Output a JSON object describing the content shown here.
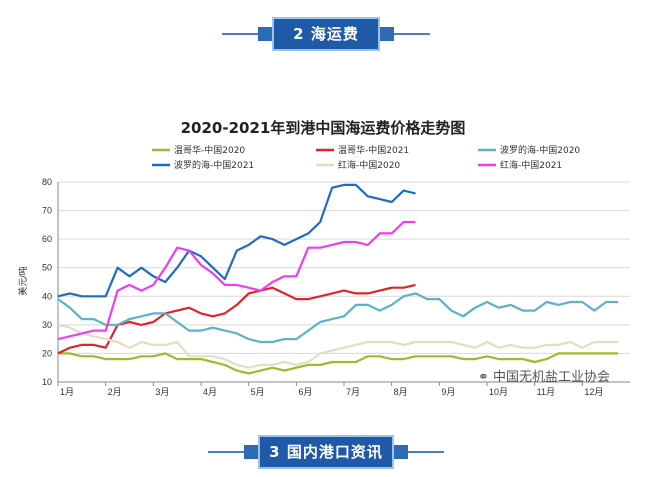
{
  "section2": {
    "label": "2  海运费"
  },
  "section3": {
    "label": "3  国内港口资讯"
  },
  "watermark": {
    "text": "中国无机盐工业协会",
    "icon": "wechat-icon"
  },
  "chart_data": {
    "type": "line",
    "title": "2020-2021年到港中国海运费价格走势图",
    "ylabel": "美元/吨",
    "xlabel": "",
    "ylim": [
      10,
      80
    ],
    "yticks": [
      10,
      20,
      30,
      40,
      50,
      60,
      70,
      80
    ],
    "grid": true,
    "legend_position": "top",
    "categories": [
      "1月",
      "2月",
      "3月",
      "4月",
      "5月",
      "6月",
      "7月",
      "8月",
      "9月",
      "10月",
      "11月",
      "12月"
    ],
    "series": [
      {
        "name": "温哥华-中国2020",
        "color": "#9bbb2c",
        "x": [
          1,
          1.25,
          1.5,
          1.75,
          2,
          2.25,
          2.5,
          2.75,
          3,
          3.25,
          3.5,
          3.75,
          4,
          4.25,
          4.5,
          4.75,
          5,
          5.25,
          5.5,
          5.75,
          6,
          6.25,
          6.5,
          6.75,
          7,
          7.25,
          7.5,
          7.75,
          8,
          8.25,
          8.5,
          8.75,
          9,
          9.25,
          9.5,
          9.75,
          10,
          10.25,
          10.5,
          10.75,
          11,
          11.25,
          11.5,
          11.75,
          12,
          12.25,
          12.5,
          12.75
        ],
        "values": [
          20,
          20,
          19,
          19,
          18,
          18,
          18,
          19,
          19,
          20,
          18,
          18,
          18,
          17,
          16,
          14,
          13,
          14,
          15,
          14,
          15,
          16,
          16,
          17,
          17,
          17,
          19,
          19,
          18,
          18,
          19,
          19,
          19,
          19,
          18,
          18,
          19,
          18,
          18,
          18,
          17,
          18,
          20,
          20,
          20,
          20,
          20,
          20
        ]
      },
      {
        "name": "温哥华-中国2021",
        "color": "#e0242b",
        "x": [
          1,
          1.25,
          1.5,
          1.75,
          2,
          2.25,
          2.5,
          2.75,
          3,
          3.25,
          3.5,
          3.75,
          4,
          4.25,
          4.5,
          4.75,
          5,
          5.25,
          5.5,
          5.75,
          6,
          6.25,
          6.5,
          6.75,
          7,
          7.25,
          7.5,
          7.75,
          8,
          8.25,
          8.5
        ],
        "values": [
          20,
          22,
          23,
          23,
          22,
          30,
          31,
          30,
          31,
          34,
          35,
          36,
          34,
          33,
          34,
          37,
          41,
          42,
          43,
          41,
          39,
          39,
          40,
          41,
          42,
          41,
          41,
          42,
          43,
          43,
          44
        ]
      },
      {
        "name": "波罗的海-中国2020",
        "color": "#5ab3c8",
        "x": [
          1,
          1.25,
          1.5,
          1.75,
          2,
          2.25,
          2.5,
          2.75,
          3,
          3.25,
          3.5,
          3.75,
          4,
          4.25,
          4.5,
          4.75,
          5,
          5.25,
          5.5,
          5.75,
          6,
          6.25,
          6.5,
          6.75,
          7,
          7.25,
          7.5,
          7.75,
          8,
          8.25,
          8.5,
          8.75,
          9,
          9.25,
          9.5,
          9.75,
          10,
          10.25,
          10.5,
          10.75,
          11,
          11.25,
          11.5,
          11.75,
          12,
          12.25,
          12.5,
          12.75
        ],
        "values": [
          39,
          36,
          32,
          32,
          30,
          30,
          32,
          33,
          34,
          34,
          31,
          28,
          28,
          29,
          28,
          27,
          25,
          24,
          24,
          25,
          25,
          28,
          31,
          32,
          33,
          37,
          37,
          35,
          37,
          40,
          41,
          39,
          39,
          35,
          33,
          36,
          38,
          36,
          37,
          35,
          35,
          38,
          37,
          38,
          38,
          35,
          38,
          38
        ]
      },
      {
        "name": "波罗的海-中国2021",
        "color": "#1f6cc1",
        "x": [
          1,
          1.25,
          1.5,
          1.75,
          2,
          2.25,
          2.5,
          2.75,
          3,
          3.25,
          3.5,
          3.75,
          4,
          4.25,
          4.5,
          4.75,
          5,
          5.25,
          5.5,
          5.75,
          6,
          6.25,
          6.5,
          6.75,
          7,
          7.25,
          7.5,
          7.75,
          8,
          8.25,
          8.5
        ],
        "values": [
          40,
          41,
          40,
          40,
          40,
          50,
          47,
          50,
          47,
          45,
          50,
          56,
          54,
          50,
          46,
          56,
          58,
          61,
          60,
          58,
          60,
          62,
          66,
          78,
          79,
          79,
          75,
          74,
          73,
          77,
          76
        ]
      },
      {
        "name": "红海-中国2020",
        "color": "#e8dcc0",
        "x": [
          1,
          1.25,
          1.5,
          1.75,
          2,
          2.25,
          2.5,
          2.75,
          3,
          3.25,
          3.5,
          3.75,
          4,
          4.25,
          4.5,
          4.75,
          5,
          5.25,
          5.5,
          5.75,
          6,
          6.25,
          6.5,
          6.75,
          7,
          7.25,
          7.5,
          7.75,
          8,
          8.25,
          8.5,
          8.75,
          9,
          9.25,
          9.5,
          9.75,
          10,
          10.25,
          10.5,
          10.75,
          11,
          11.25,
          11.5,
          11.75,
          12,
          12.25,
          12.5,
          12.75
        ],
        "values": [
          30,
          29,
          27,
          26,
          25,
          24,
          22,
          24,
          23,
          23,
          24,
          19,
          19,
          19,
          18,
          16,
          15,
          16,
          16,
          17,
          16,
          17,
          20,
          21,
          22,
          23,
          24,
          24,
          24,
          23,
          24,
          24,
          24,
          24,
          23,
          22,
          24,
          22,
          23,
          22,
          22,
          23,
          23,
          24,
          22,
          24,
          24,
          24
        ]
      },
      {
        "name": "红海-中国2021",
        "color": "#f03cf0",
        "x": [
          1,
          1.25,
          1.5,
          1.75,
          2,
          2.25,
          2.5,
          2.75,
          3,
          3.25,
          3.5,
          3.75,
          4,
          4.25,
          4.5,
          4.75,
          5,
          5.25,
          5.5,
          5.75,
          6,
          6.25,
          6.5,
          6.75,
          7,
          7.25,
          7.5,
          7.75,
          8,
          8.25,
          8.5
        ],
        "values": [
          25,
          26,
          27,
          28,
          28,
          42,
          44,
          42,
          44,
          50,
          57,
          56,
          51,
          48,
          44,
          44,
          43,
          42,
          45,
          47,
          47,
          57,
          57,
          58,
          59,
          59,
          58,
          62,
          62,
          66,
          66
        ]
      }
    ]
  }
}
